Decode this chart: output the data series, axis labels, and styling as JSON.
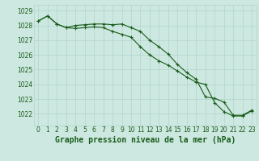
{
  "title": "Graphe pression niveau de la mer (hPa)",
  "bg_color": "#cce8e0",
  "grid_color": "#aacfc8",
  "line_color": "#1a5c1a",
  "xlim": [
    -0.5,
    23.5
  ],
  "ylim": [
    1021.2,
    1029.4
  ],
  "yticks": [
    1022,
    1023,
    1024,
    1025,
    1026,
    1027,
    1028,
    1029
  ],
  "xticks": [
    0,
    1,
    2,
    3,
    4,
    5,
    6,
    7,
    8,
    9,
    10,
    11,
    12,
    13,
    14,
    15,
    16,
    17,
    18,
    19,
    20,
    21,
    22,
    23
  ],
  "series1": [
    1028.3,
    1028.65,
    1028.1,
    1027.85,
    1028.0,
    1028.05,
    1028.1,
    1028.1,
    1028.05,
    1028.1,
    1027.85,
    1027.6,
    1027.0,
    1026.55,
    1026.05,
    1025.35,
    1024.8,
    1024.35,
    1023.15,
    1023.05,
    1022.8,
    1021.9,
    1021.9,
    1022.25
  ],
  "series2": [
    1028.3,
    1028.65,
    1028.1,
    1027.85,
    1027.8,
    1027.85,
    1027.9,
    1027.85,
    1027.6,
    1027.4,
    1027.2,
    1026.55,
    1026.0,
    1025.6,
    1025.3,
    1024.9,
    1024.5,
    1024.15,
    1024.0,
    1022.75,
    1022.15,
    1021.85,
    1021.85,
    1022.2
  ],
  "title_fontsize": 7.0,
  "tick_fontsize": 5.5
}
